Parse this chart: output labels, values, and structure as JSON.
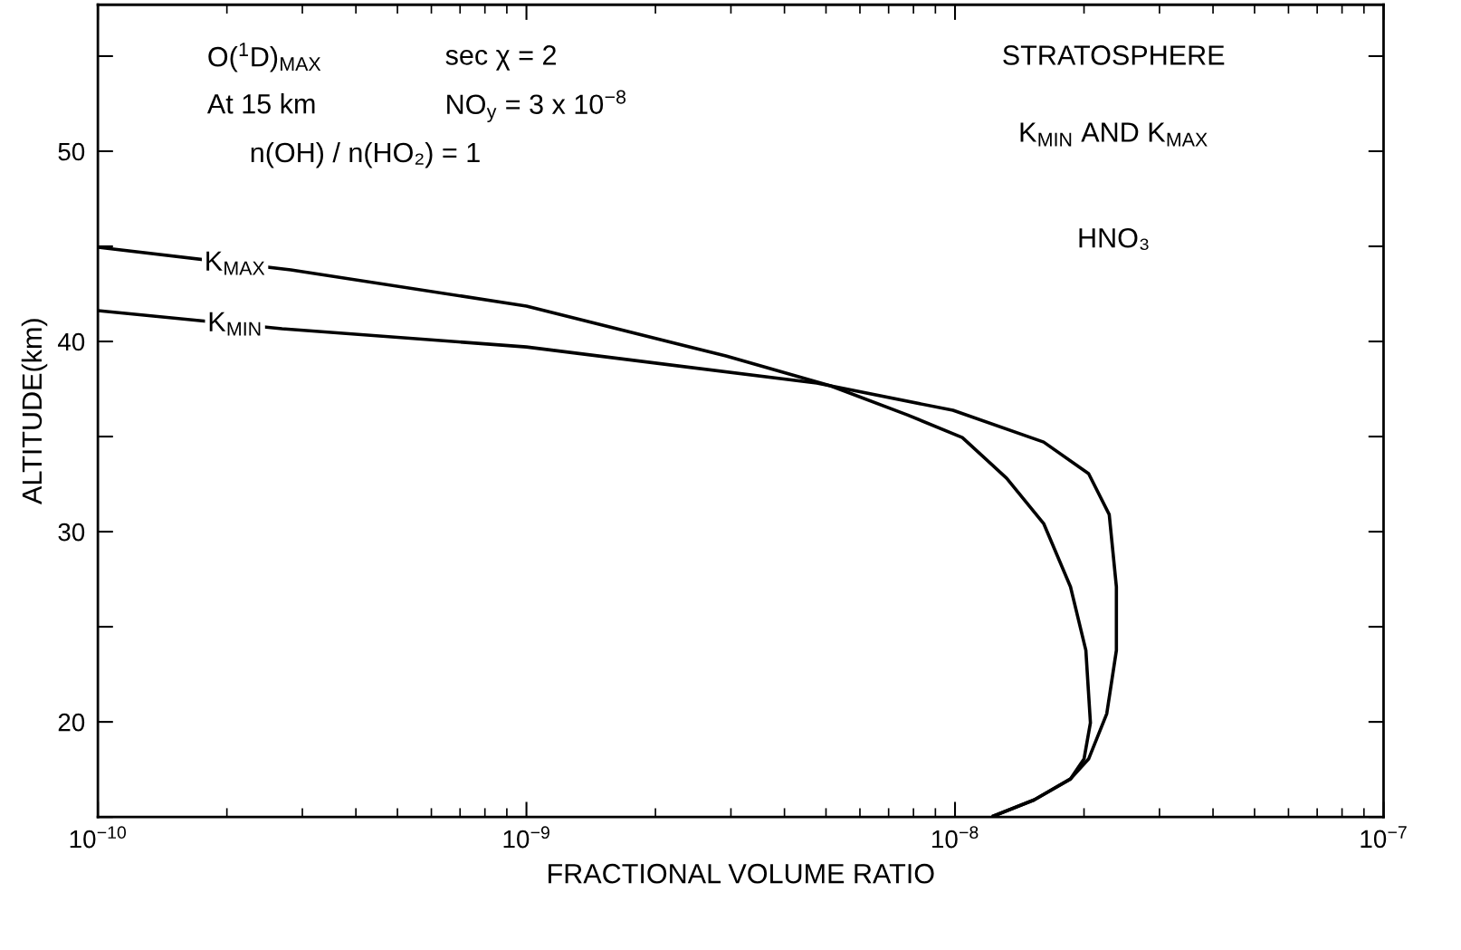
{
  "chart_data": {
    "type": "line",
    "xlabel": "FRACTIONAL VOLUME RATIO",
    "ylabel": "ALTITUDE(km)",
    "log": "x",
    "xlim": [
      1e-10,
      1e-07
    ],
    "ylim": [
      15,
      57.7
    ],
    "xticks": [
      {
        "value": 1e-10,
        "label": "10$^{−10}$"
      },
      {
        "value": 1e-09,
        "label": "10$^{−9}$"
      },
      {
        "value": 1e-08,
        "label": "10$^{−8}$"
      },
      {
        "value": 1e-07,
        "label": "10$^{−7}$"
      }
    ],
    "yticks": [
      20,
      30,
      40,
      50
    ],
    "grid": false,
    "legend": false,
    "marker": "none",
    "line_style": "solid",
    "series": [
      {
        "name": "K$_{MAX}$",
        "color": "#000000",
        "x": [
          1e-10,
          2.82e-10,
          1e-09,
          2.92e-09,
          5.12e-09,
          7.74e-09,
          1.04e-08,
          1.32e-08,
          1.61e-08,
          1.86e-08,
          2.02e-08,
          2.07e-08,
          2e-08,
          1.86e-08,
          1.53e-08,
          1.23e-08
        ],
        "values": [
          44.95,
          43.76,
          41.86,
          39.24,
          37.67,
          36.14,
          34.95,
          32.81,
          30.43,
          27.1,
          23.76,
          19.95,
          18.05,
          17.0,
          15.9,
          15.05
        ]
      },
      {
        "name": "K$_{MIN}$",
        "color": "#000000",
        "x": [
          1e-10,
          2.69e-10,
          1e-09,
          4.76e-09,
          9.89e-09,
          1.61e-08,
          2.05e-08,
          2.29e-08,
          2.38e-08,
          2.38e-08,
          2.26e-08,
          2.05e-08,
          1.86e-08,
          1.53e-08,
          1.23e-08
        ],
        "values": [
          41.62,
          40.67,
          39.71,
          37.81,
          36.38,
          34.71,
          33.05,
          30.9,
          27.1,
          23.76,
          20.43,
          18.05,
          17.0,
          15.9,
          15.05
        ]
      }
    ],
    "annotations": [
      "O($^{1}$D)$_{MAX}$",
      "sec χ = 2",
      "At 15 km",
      "NO$_{y}$ = 3 x 10$^{−8}$",
      "n(OH) / n(HO₂) = 1",
      "STRATOSPHERE",
      "K$_{MIN}$ AND K$_{MAX}$",
      "HNO₃"
    ]
  }
}
